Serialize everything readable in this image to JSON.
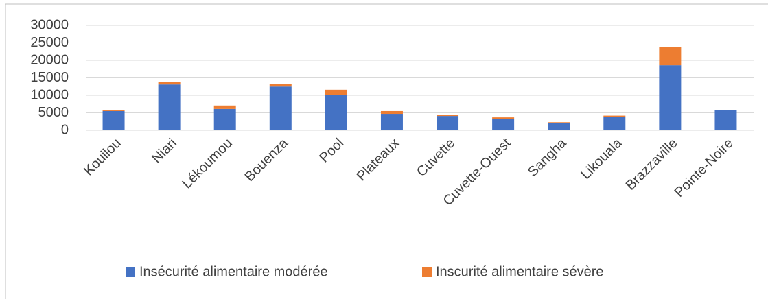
{
  "chart_data": {
    "type": "stacked_bar",
    "categories": [
      "Kouilou",
      "Niari",
      "Lékoumou",
      "Bouenza",
      "Pool",
      "Plateaux",
      "Cuvette",
      "Cuvette-Ouest",
      "Sangha",
      "Likouala",
      "Brazzaville",
      "Pointe-Noire"
    ],
    "series": [
      {
        "name": "Insécurité alimentaire modérée",
        "color": "#4472c4",
        "values": [
          5500,
          13100,
          6100,
          12500,
          10000,
          4700,
          4100,
          3300,
          2000,
          3900,
          18600,
          5700
        ]
      },
      {
        "name": "Inscurité alimentaire sévère",
        "color": "#ed7d31",
        "values": [
          200,
          800,
          1000,
          800,
          1600,
          800,
          400,
          400,
          300,
          300,
          5300,
          0
        ]
      }
    ],
    "ylim": [
      0,
      30000
    ],
    "yticks": [
      0,
      5000,
      10000,
      15000,
      20000,
      25000,
      30000
    ],
    "grid": true,
    "legend": "bottom"
  }
}
